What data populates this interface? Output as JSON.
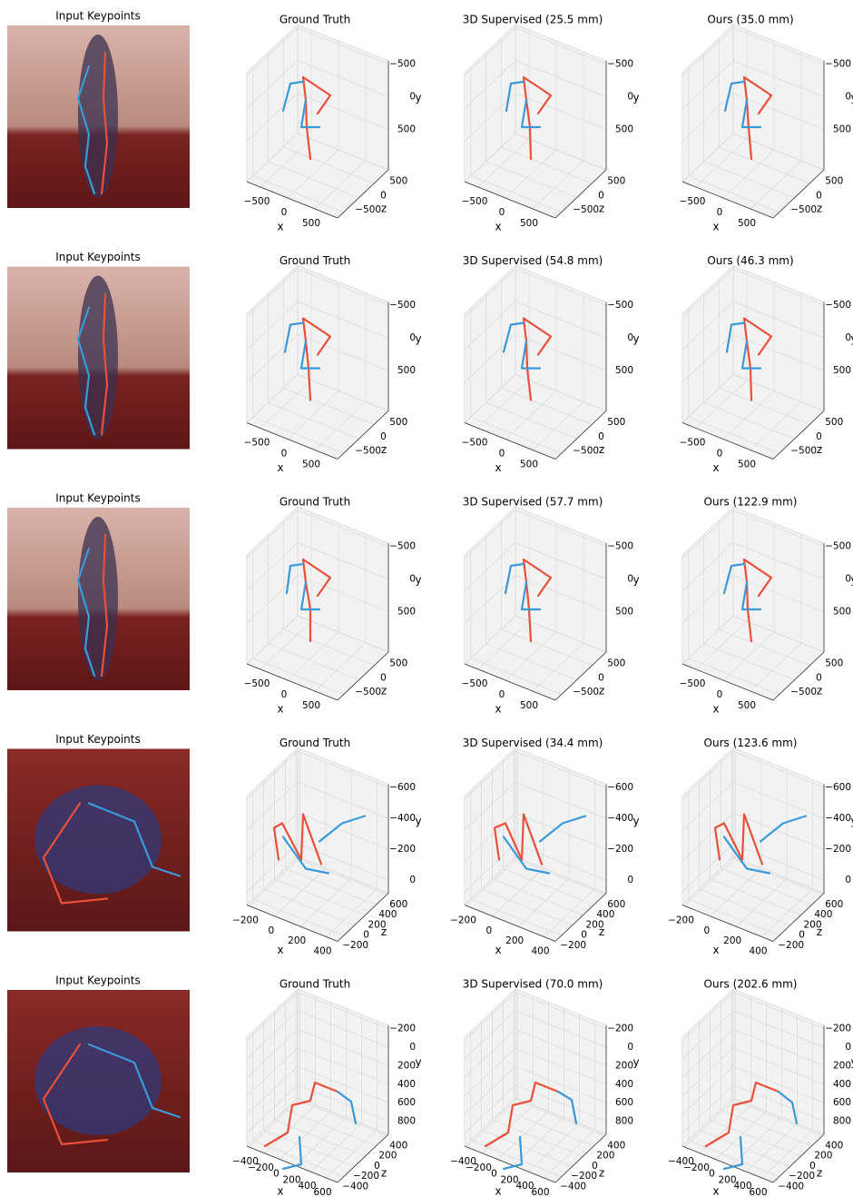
{
  "rows": [
    {
      "input_title": "Input Keypoints",
      "panels": [
        {
          "title": "Ground Truth",
          "x_label": "x",
          "y_label": "y",
          "z_label": "z",
          "x_ticks": [
            "−500",
            "0",
            "500"
          ],
          "y_ticks": [
            "−500",
            "0",
            "500"
          ],
          "z_ticks": [
            "500",
            "0",
            "−500"
          ]
        },
        {
          "title": "3D Supervised (25.5 mm)",
          "x_label": "x",
          "y_label": "y",
          "z_label": "z",
          "x_ticks": [
            "−500",
            "0",
            "500"
          ],
          "y_ticks": [
            "−500",
            "0",
            "500"
          ],
          "z_ticks": [
            "500",
            "0",
            "−500"
          ]
        },
        {
          "title": "Ours (35.0 mm)",
          "x_label": "x",
          "y_label": "y",
          "z_label": "z",
          "x_ticks": [
            "−500",
            "0",
            "500"
          ],
          "y_ticks": [
            "−500",
            "0",
            "500"
          ],
          "z_ticks": [
            "500",
            "0",
            "−500"
          ]
        }
      ]
    },
    {
      "input_title": "Input Keypoints",
      "panels": [
        {
          "title": "Ground Truth",
          "x_label": "x",
          "y_label": "y",
          "z_label": "z",
          "x_ticks": [
            "−500",
            "0",
            "500"
          ],
          "y_ticks": [
            "−500",
            "0",
            "500"
          ],
          "z_ticks": [
            "500",
            "0",
            "−500"
          ]
        },
        {
          "title": "3D Supervised (54.8 mm)",
          "x_label": "x",
          "y_label": "y",
          "z_label": "z",
          "x_ticks": [
            "−500",
            "0",
            "500"
          ],
          "y_ticks": [
            "−500",
            "0",
            "500"
          ],
          "z_ticks": [
            "500",
            "0",
            "−500"
          ]
        },
        {
          "title": "Ours (46.3 mm)",
          "x_label": "x",
          "y_label": "y",
          "z_label": "z",
          "x_ticks": [
            "−500",
            "0",
            "500"
          ],
          "y_ticks": [
            "−500",
            "0",
            "500"
          ],
          "z_ticks": [
            "500",
            "0",
            "−500"
          ]
        }
      ]
    },
    {
      "input_title": "Input Keypoints",
      "panels": [
        {
          "title": "Ground Truth",
          "x_label": "x",
          "y_label": "y",
          "z_label": "z",
          "x_ticks": [
            "−500",
            "0",
            "500"
          ],
          "y_ticks": [
            "−500",
            "0",
            "500"
          ],
          "z_ticks": [
            "500",
            "0",
            "−500"
          ]
        },
        {
          "title": "3D Supervised (57.7 mm)",
          "x_label": "x",
          "y_label": "y",
          "z_label": "z",
          "x_ticks": [
            "−500",
            "0",
            "500"
          ],
          "y_ticks": [
            "−500",
            "0",
            "500"
          ],
          "z_ticks": [
            "500",
            "0",
            "−500"
          ]
        },
        {
          "title": "Ours (122.9 mm)",
          "x_label": "x",
          "y_label": "y",
          "z_label": "z",
          "x_ticks": [
            "−500",
            "0",
            "500"
          ],
          "y_ticks": [
            "−500",
            "0",
            "500"
          ],
          "z_ticks": [
            "500",
            "0",
            "−500"
          ]
        }
      ]
    },
    {
      "input_title": "Input Keypoints",
      "panels": [
        {
          "title": "Ground Truth",
          "x_label": "x",
          "y_label": "y",
          "z_label": "z",
          "x_ticks": [
            "−200",
            "0",
            "200",
            "400"
          ],
          "y_ticks": [
            "−600",
            "−400",
            "−200",
            "0"
          ],
          "z_ticks": [
            "600",
            "400",
            "200",
            "0",
            "−200"
          ]
        },
        {
          "title": "3D Supervised (34.4 mm)",
          "x_label": "x",
          "y_label": "y",
          "z_label": "z",
          "x_ticks": [
            "−200",
            "0",
            "200",
            "400"
          ],
          "y_ticks": [
            "−600",
            "−400",
            "−200",
            "0"
          ],
          "z_ticks": [
            "600",
            "400",
            "200",
            "0",
            "−200"
          ]
        },
        {
          "title": "Ours (123.6 mm)",
          "x_label": "x",
          "y_label": "y",
          "z_label": "z",
          "x_ticks": [
            "−200",
            "0",
            "200",
            "400"
          ],
          "y_ticks": [
            "−600",
            "−400",
            "−200",
            "0"
          ],
          "z_ticks": [
            "600",
            "400",
            "200",
            "0",
            "−200"
          ]
        }
      ]
    },
    {
      "input_title": "Input Keypoints",
      "panels": [
        {
          "title": "Ground Truth",
          "x_label": "x",
          "y_label": "y",
          "z_label": "z",
          "x_ticks": [
            "−400",
            "−200",
            "0",
            "200",
            "400",
            "600"
          ],
          "y_ticks": [
            "−200",
            "0",
            "200",
            "400",
            "600",
            "800"
          ],
          "z_ticks": [
            "400",
            "200",
            "0",
            "−200",
            "−400"
          ]
        },
        {
          "title": "3D Supervised (70.0 mm)",
          "x_label": "x",
          "y_label": "y",
          "z_label": "z",
          "x_ticks": [
            "−400",
            "−200",
            "0",
            "200",
            "400",
            "600"
          ],
          "y_ticks": [
            "−200",
            "0",
            "200",
            "400",
            "600",
            "800"
          ],
          "z_ticks": [
            "400",
            "200",
            "0",
            "−200",
            "−400"
          ]
        },
        {
          "title": "Ours (202.6 mm)",
          "x_label": "x",
          "y_label": "y",
          "z_label": "z",
          "x_ticks": [
            "−400",
            "−200",
            "0",
            "200",
            "400",
            "600"
          ],
          "y_ticks": [
            "−200",
            "0",
            "200",
            "400",
            "600",
            "800"
          ],
          "z_ticks": [
            "400",
            "200",
            "0",
            "−200",
            "−400"
          ]
        }
      ]
    }
  ]
}
